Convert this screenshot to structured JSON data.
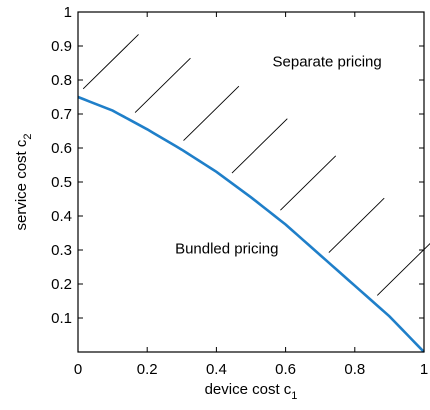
{
  "chart_data": {
    "type": "line",
    "xlabel": "device cost c",
    "xlabel_sub": "1",
    "ylabel": "service cost c",
    "ylabel_sub": "2",
    "xlim": [
      0,
      1
    ],
    "ylim": [
      0,
      1
    ],
    "xticks": [
      "0",
      "0.2",
      "0.4",
      "0.6",
      "0.8",
      "1"
    ],
    "yticks": [
      "0.1",
      "0.2",
      "0.3",
      "0.4",
      "0.5",
      "0.6",
      "0.7",
      "0.8",
      "0.9",
      "1"
    ],
    "grid": false,
    "series": [
      {
        "color": "#1f7fc9",
        "x": [
          0,
          0.1,
          0.2,
          0.3,
          0.4,
          0.5,
          0.6,
          0.7,
          0.8,
          0.9,
          1.0
        ],
        "y": [
          0.75,
          0.71,
          0.655,
          0.595,
          0.53,
          0.455,
          0.375,
          0.285,
          0.195,
          0.105,
          0.0
        ]
      }
    ],
    "annotations": [
      {
        "text": "Separate pricing",
        "x": 0.72,
        "y": 0.84
      },
      {
        "text": "Bundled pricing",
        "x": 0.43,
        "y": 0.29
      }
    ],
    "hatch": {
      "region": "above-curve",
      "color": "#000000"
    }
  }
}
